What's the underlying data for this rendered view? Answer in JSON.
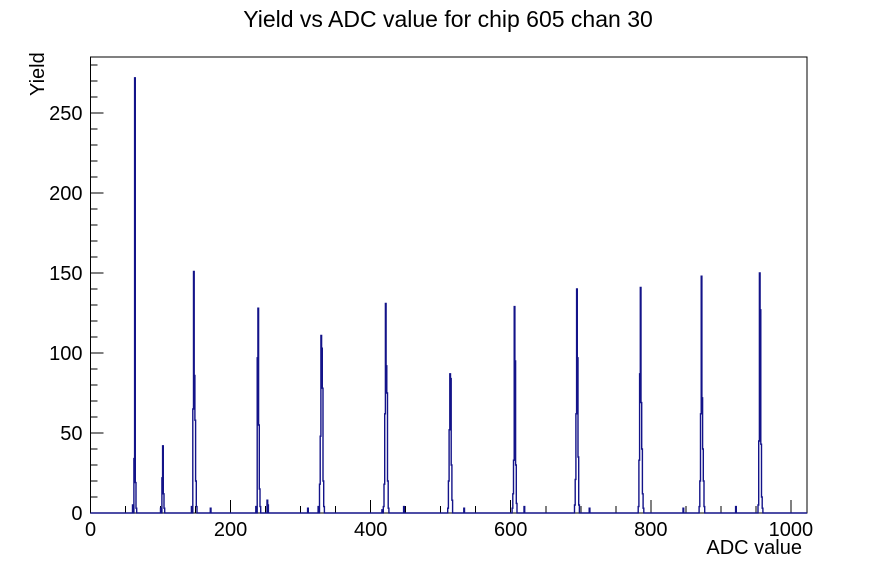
{
  "chart_data": {
    "type": "bar",
    "title": "Yield vs ADC value for chip 605 chan 30",
    "xlabel": "ADC value",
    "ylabel": "Yield",
    "xlim": [
      0,
      1023
    ],
    "ylim": [
      0,
      285
    ],
    "x_major_ticks": [
      0,
      200,
      400,
      600,
      800,
      1000
    ],
    "x_minor_step": 50,
    "y_major_ticks": [
      0,
      50,
      100,
      150,
      200,
      250
    ],
    "y_minor_step": 10,
    "grid": false,
    "legend": false,
    "line_color": "#131389",
    "axis_color": "#000000",
    "background": "#ffffff",
    "bars": [
      [
        60,
        5
      ],
      [
        62,
        34
      ],
      [
        63,
        272
      ],
      [
        64,
        19
      ],
      [
        65,
        3
      ],
      [
        100,
        3
      ],
      [
        102,
        22
      ],
      [
        103,
        42
      ],
      [
        104,
        12
      ],
      [
        105,
        3
      ],
      [
        144,
        4
      ],
      [
        146,
        65
      ],
      [
        147,
        151
      ],
      [
        148,
        86
      ],
      [
        149,
        58
      ],
      [
        150,
        20
      ],
      [
        151,
        4
      ],
      [
        171,
        3
      ],
      [
        236,
        4
      ],
      [
        238,
        97
      ],
      [
        239,
        128
      ],
      [
        240,
        55
      ],
      [
        241,
        15
      ],
      [
        242,
        4
      ],
      [
        252,
        8
      ],
      [
        253,
        5
      ],
      [
        310,
        3
      ],
      [
        325,
        4
      ],
      [
        327,
        18
      ],
      [
        328,
        48
      ],
      [
        329,
        111
      ],
      [
        330,
        103
      ],
      [
        331,
        78
      ],
      [
        332,
        20
      ],
      [
        333,
        4
      ],
      [
        416,
        2
      ],
      [
        418,
        4
      ],
      [
        419,
        18
      ],
      [
        420,
        62
      ],
      [
        421,
        131
      ],
      [
        422,
        92
      ],
      [
        423,
        75
      ],
      [
        424,
        20
      ],
      [
        425,
        3
      ],
      [
        447,
        4
      ],
      [
        510,
        3
      ],
      [
        511,
        20
      ],
      [
        512,
        52
      ],
      [
        513,
        87
      ],
      [
        514,
        84
      ],
      [
        515,
        30
      ],
      [
        516,
        8
      ],
      [
        533,
        3
      ],
      [
        602,
        3
      ],
      [
        603,
        12
      ],
      [
        604,
        33
      ],
      [
        605,
        129
      ],
      [
        606,
        95
      ],
      [
        607,
        30
      ],
      [
        608,
        6
      ],
      [
        619,
        4
      ],
      [
        691,
        5
      ],
      [
        692,
        21
      ],
      [
        693,
        62
      ],
      [
        694,
        140
      ],
      [
        695,
        97
      ],
      [
        696,
        35
      ],
      [
        697,
        5
      ],
      [
        712,
        3
      ],
      [
        782,
        4
      ],
      [
        783,
        33
      ],
      [
        784,
        87
      ],
      [
        785,
        141
      ],
      [
        786,
        69
      ],
      [
        787,
        40
      ],
      [
        788,
        12
      ],
      [
        789,
        3
      ],
      [
        846,
        3
      ],
      [
        869,
        4
      ],
      [
        870,
        20
      ],
      [
        871,
        62
      ],
      [
        872,
        148
      ],
      [
        873,
        72
      ],
      [
        874,
        40
      ],
      [
        875,
        20
      ],
      [
        876,
        4
      ],
      [
        921,
        4
      ],
      [
        953,
        5
      ],
      [
        954,
        45
      ],
      [
        955,
        150
      ],
      [
        956,
        127
      ],
      [
        957,
        43
      ],
      [
        958,
        10
      ],
      [
        959,
        3
      ]
    ],
    "peaks_summary": {
      "adc": [
        63,
        103,
        147,
        239,
        329,
        421,
        513,
        605,
        694,
        785,
        872,
        956
      ],
      "yield": [
        272,
        42,
        151,
        128,
        111,
        131,
        87,
        129,
        140,
        141,
        148,
        150
      ]
    }
  }
}
